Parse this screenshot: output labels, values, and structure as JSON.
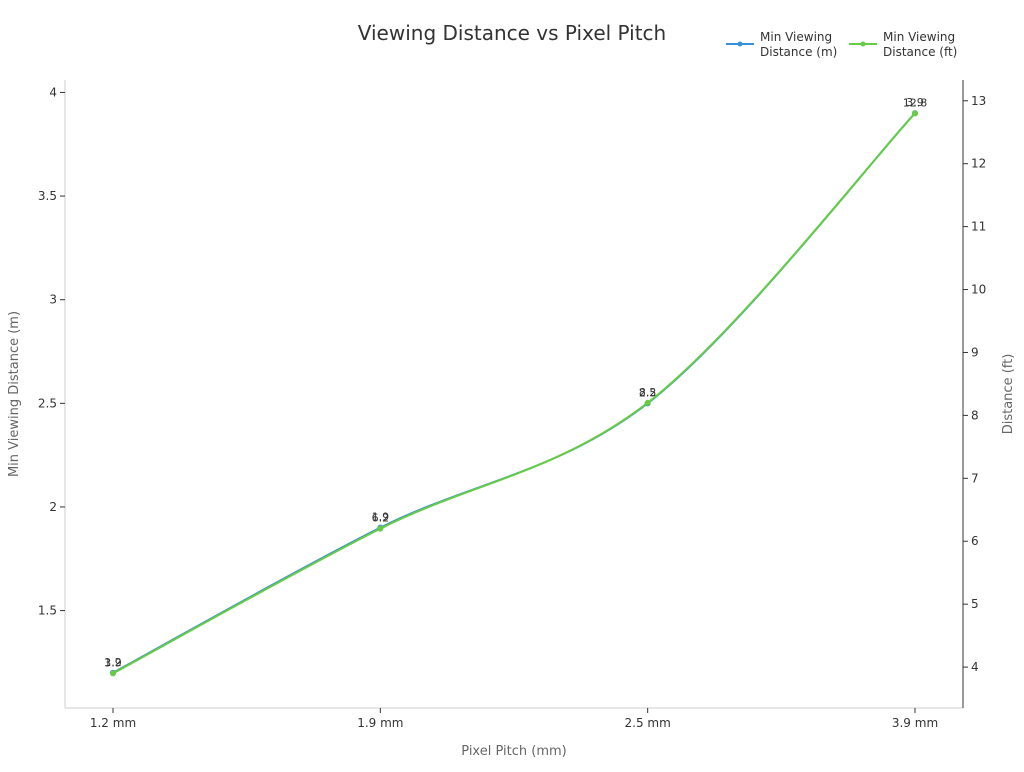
{
  "chart_data": {
    "type": "line",
    "title": "Viewing Distance vs Pixel Pitch",
    "x_label": "Pixel Pitch (mm)",
    "y_label": "Min Viewing Distance (m)",
    "y2_label": "Distance (ft)",
    "categories": [
      "1.2 mm",
      "1.9 mm",
      "2.5 mm",
      "3.9 mm"
    ],
    "series": [
      {
        "name": "Min Viewing Distance (m)",
        "color": "#3a8fd9",
        "values": [
          1.2,
          1.9,
          2.5,
          3.9
        ]
      },
      {
        "name": "Min Viewing Distance (ft)",
        "color": "#66cc44",
        "values": [
          3.9,
          6.2,
          8.2,
          12.8
        ],
        "axis": "y2"
      }
    ],
    "ylim": [
      1.03,
      4.06
    ],
    "yticks": [
      1.5,
      2,
      2.5,
      3,
      3.5,
      4
    ],
    "y2lim": [
      3.35,
      13.33
    ],
    "y2ticks": [
      4,
      5,
      6,
      7,
      8,
      9,
      10,
      11,
      12,
      13
    ],
    "legend": "top-right",
    "smooth": true
  }
}
